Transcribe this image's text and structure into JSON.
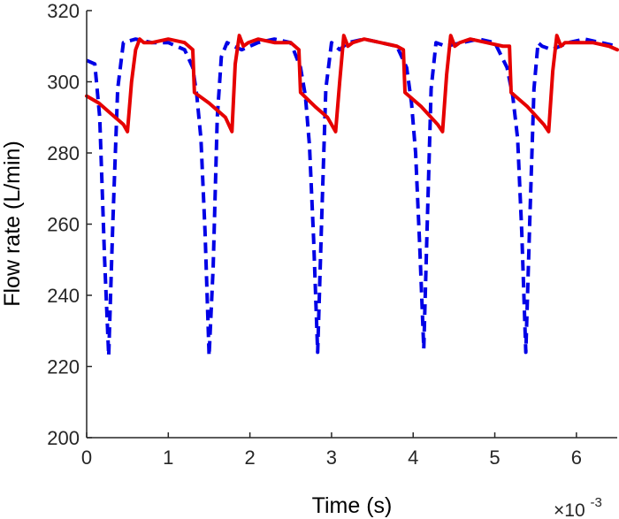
{
  "chart_data": {
    "type": "line",
    "xlabel": "Time (s)",
    "ylabel": "Flow rate (L/min)",
    "x_multiplier_label": "×10",
    "x_multiplier_exponent": "-3",
    "xlim": [
      0,
      6.5
    ],
    "ylim": [
      200,
      320
    ],
    "x_ticks": [
      0,
      1,
      2,
      3,
      4,
      5,
      6
    ],
    "y_ticks": [
      200,
      220,
      240,
      260,
      280,
      300,
      320
    ],
    "x_tick_labels": [
      "0",
      "1",
      "2",
      "3",
      "4",
      "5",
      "6"
    ],
    "y_tick_labels": [
      "200",
      "220",
      "240",
      "260",
      "280",
      "300",
      "320"
    ],
    "grid": false,
    "series": [
      {
        "color": "#0000e6",
        "style": "dashed",
        "x": [
          0,
          0.1,
          0.16,
          0.22,
          0.27,
          0.32,
          0.38,
          0.45,
          0.6,
          0.8,
          1.0,
          1.2,
          1.3,
          1.35,
          1.4,
          1.45,
          1.5,
          1.55,
          1.6,
          1.65,
          1.72,
          1.8,
          1.9,
          2.1,
          2.3,
          2.5,
          2.62,
          2.68,
          2.73,
          2.78,
          2.83,
          2.88,
          2.93,
          3.0,
          3.1,
          3.2,
          3.4,
          3.6,
          3.8,
          3.92,
          3.98,
          4.03,
          4.08,
          4.13,
          4.17,
          4.22,
          4.28,
          4.4,
          4.6,
          4.8,
          5.0,
          5.15,
          5.22,
          5.28,
          5.33,
          5.38,
          5.43,
          5.48,
          5.53,
          5.58,
          5.7,
          5.9,
          6.1,
          6.3,
          6.5
        ],
        "y": [
          306,
          305,
          290,
          250,
          223,
          260,
          298,
          311,
          312,
          311,
          311,
          309,
          304,
          296,
          284,
          258,
          223,
          248,
          290,
          307,
          311,
          310,
          309,
          311,
          312,
          311,
          304,
          296,
          282,
          256,
          224,
          262,
          298,
          311,
          309,
          311,
          312,
          311,
          310,
          304,
          294,
          280,
          254,
          225,
          258,
          298,
          311,
          310,
          311,
          312,
          311,
          304,
          296,
          284,
          258,
          224,
          262,
          298,
          311,
          310,
          309,
          311,
          312,
          311,
          310
        ]
      },
      {
        "color": "#e60000",
        "style": "solid",
        "x": [
          0,
          0.15,
          0.3,
          0.45,
          0.5,
          0.55,
          0.6,
          0.65,
          0.7,
          0.8,
          1.0,
          1.2,
          1.3,
          1.32,
          1.5,
          1.7,
          1.78,
          1.82,
          1.87,
          1.92,
          1.98,
          2.1,
          2.3,
          2.5,
          2.6,
          2.62,
          2.8,
          2.95,
          3.05,
          3.1,
          3.15,
          3.2,
          3.26,
          3.4,
          3.6,
          3.8,
          3.88,
          3.9,
          4.1,
          4.3,
          4.36,
          4.41,
          4.46,
          4.51,
          4.57,
          4.7,
          4.9,
          5.1,
          5.18,
          5.2,
          5.4,
          5.6,
          5.66,
          5.71,
          5.76,
          5.81,
          5.86,
          6.0,
          6.2,
          6.4,
          6.5
        ],
        "y": [
          296,
          294,
          291,
          288,
          286,
          300,
          309,
          312,
          311,
          311,
          312,
          311,
          309,
          297,
          294,
          290,
          286,
          305,
          313,
          310,
          311,
          312,
          311,
          311,
          309,
          297,
          293,
          290,
          286,
          300,
          313,
          310,
          311,
          312,
          311,
          310,
          309,
          297,
          293,
          288,
          286,
          302,
          313,
          310,
          311,
          312,
          311,
          310,
          310,
          297,
          293,
          288,
          286,
          303,
          313,
          310,
          311,
          311,
          311,
          310,
          309
        ]
      }
    ]
  }
}
